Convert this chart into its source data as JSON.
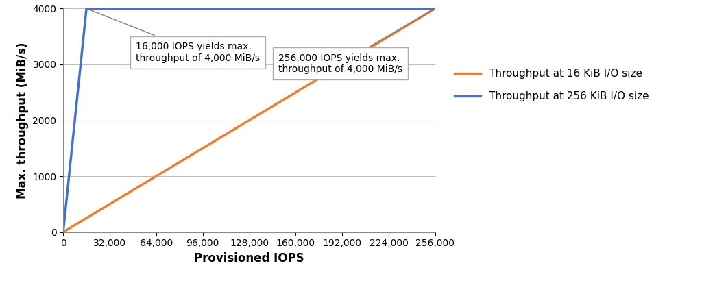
{
  "xlabel": "Provisioned IOPS",
  "ylabel": "Max. throughput (MiB/s)",
  "xlim": [
    0,
    256000
  ],
  "ylim": [
    0,
    4000
  ],
  "xticks": [
    0,
    32000,
    64000,
    96000,
    128000,
    160000,
    192000,
    224000,
    256000
  ],
  "xtick_labels": [
    "0",
    "32,000",
    "64,000",
    "96,000",
    "128,000",
    "160,000",
    "192,000",
    "224,000",
    "256,000"
  ],
  "yticks": [
    0,
    1000,
    2000,
    3000,
    4000
  ],
  "line_16k": {
    "x": [
      0,
      256000
    ],
    "y": [
      0,
      4000
    ],
    "color": "#ED7D31",
    "linewidth": 2.5,
    "label": "Throughput at 16 KiB I/O size"
  },
  "line_256k": {
    "x": [
      0,
      16000,
      256000
    ],
    "y": [
      0,
      4000,
      4000
    ],
    "color": "#4472C4",
    "linewidth": 2.5,
    "label": "Throughput at 256 KiB I/O size"
  },
  "ann1_text": "16,000 IOPS yields max.\nthroughput of 4,000 MiB/s",
  "ann2_text": "256,000 IOPS yields max.\nthroughput of 4,000 MiB/s",
  "background_color": "#FFFFFF",
  "plot_bg_color": "#FFFFFF",
  "grid_color": "#C0C0C0",
  "xlabel_fontsize": 12,
  "ylabel_fontsize": 12,
  "tick_fontsize": 10,
  "legend_fontsize": 11
}
